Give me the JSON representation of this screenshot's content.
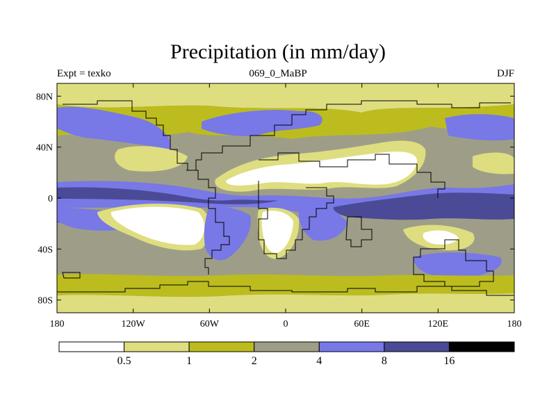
{
  "title": "Precipitation (in mm/day)",
  "subtitle_left": "Expt = texko",
  "subtitle_center": "069_0_MaBP",
  "subtitle_right": "DJF",
  "x_ticks": [
    "180",
    "120W",
    "60W",
    "0",
    "60E",
    "120E",
    "180"
  ],
  "y_ticks": [
    "80N",
    "40N",
    "0",
    "40S",
    "80S"
  ],
  "colorbar": {
    "levels": [
      "0.5",
      "1",
      "2",
      "4",
      "8",
      "16"
    ],
    "colors": [
      "#ffffff",
      "#dede80",
      "#bcbc1e",
      "#9e9e88",
      "#7878e6",
      "#4a4a96",
      "#000000"
    ]
  },
  "chart_data": {
    "type": "heatmap",
    "variable": "Precipitation",
    "units": "mm/day",
    "season": "DJF",
    "experiment": "texko",
    "xlim": [
      -180,
      180
    ],
    "ylim": [
      -90,
      90
    ],
    "x_tick_values": [
      -180,
      -120,
      -60,
      0,
      60,
      120,
      180
    ],
    "y_tick_values": [
      80,
      40,
      0,
      -40,
      -80
    ],
    "contour_levels": [
      0.5,
      1,
      2,
      4,
      8,
      16
    ]
  }
}
